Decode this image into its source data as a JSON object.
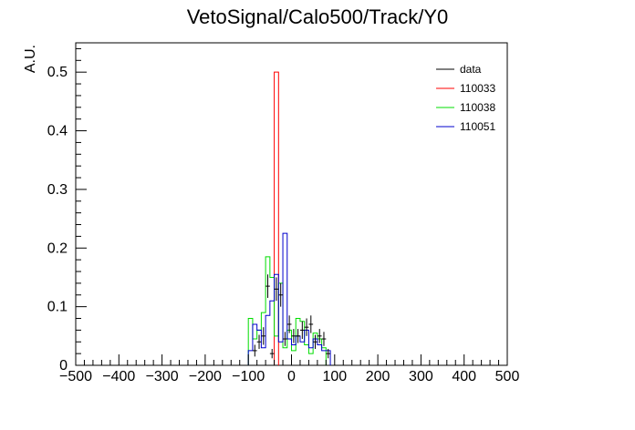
{
  "chart_data": {
    "type": "histogram",
    "title": "VetoSignal/Calo500/Track/Y0",
    "xlabel": "",
    "ylabel": "A.U.",
    "xlim": [
      -500,
      500
    ],
    "ylim": [
      0,
      0.55
    ],
    "x_ticks": [
      -500,
      -400,
      -300,
      -200,
      -100,
      0,
      100,
      200,
      300,
      400,
      500
    ],
    "y_ticks": [
      0,
      0.1,
      0.2,
      0.3,
      0.4,
      0.5
    ],
    "x_tick_labels": [
      "−500",
      "−400",
      "−300",
      "−200",
      "−100",
      "0",
      "100",
      "200",
      "300",
      "400",
      "500"
    ],
    "y_tick_labels": [
      "0",
      "0.1",
      "0.2",
      "0.3",
      "0.4",
      "0.5"
    ],
    "bin_width": 10,
    "legend_position": "top-right",
    "series": [
      {
        "name": "data",
        "color": "#000000",
        "style": "points",
        "x": [
          -85,
          -75,
          -65,
          -55,
          -45,
          -35,
          -25,
          -15,
          -5,
          5,
          15,
          25,
          35,
          45,
          55,
          65,
          75,
          85
        ],
        "values": [
          0.025,
          0.04,
          0.05,
          0.135,
          0.02,
          0.13,
          0.12,
          0.045,
          0.07,
          0.05,
          0.05,
          0.06,
          0.065,
          0.07,
          0.04,
          0.05,
          0.045,
          0.02
        ],
        "errors": [
          0.01,
          0.012,
          0.015,
          0.02,
          0.008,
          0.02,
          0.02,
          0.012,
          0.015,
          0.012,
          0.012,
          0.015,
          0.015,
          0.015,
          0.012,
          0.012,
          0.012,
          0.008
        ]
      },
      {
        "name": "110033",
        "color": "#ff0000",
        "style": "step",
        "bins": [
          [
            -40,
            -30,
            0.5
          ]
        ]
      },
      {
        "name": "110038",
        "color": "#00dd00",
        "style": "step",
        "bins": [
          [
            -100,
            -90,
            0.08
          ],
          [
            -90,
            -80,
            0.045
          ],
          [
            -80,
            -70,
            0.06
          ],
          [
            -70,
            -60,
            0.09
          ],
          [
            -60,
            -50,
            0.185
          ],
          [
            -50,
            -40,
            0.15
          ],
          [
            -40,
            -30,
            0.05
          ],
          [
            -30,
            -20,
            0.14
          ],
          [
            -20,
            -10,
            0.03
          ],
          [
            -10,
            0,
            0.06
          ],
          [
            0,
            10,
            0.025
          ],
          [
            10,
            20,
            0.08
          ],
          [
            20,
            30,
            0.075
          ],
          [
            30,
            40,
            0.035
          ],
          [
            40,
            50,
            0.02
          ],
          [
            50,
            60,
            0.055
          ],
          [
            60,
            70,
            0.045
          ],
          [
            70,
            80,
            0.03
          ]
        ]
      },
      {
        "name": "110051",
        "color": "#0000cc",
        "style": "step",
        "bins": [
          [
            -100,
            -90,
            0.025
          ],
          [
            -90,
            -80,
            0.07
          ],
          [
            -80,
            -70,
            0.06
          ],
          [
            -70,
            -60,
            0.03
          ],
          [
            -60,
            -50,
            0.085
          ],
          [
            -50,
            -40,
            0.11
          ],
          [
            -40,
            -30,
            0.155
          ],
          [
            -30,
            -20,
            0.04
          ],
          [
            -20,
            -10,
            0.225
          ],
          [
            -10,
            0,
            0.045
          ],
          [
            0,
            10,
            0.035
          ],
          [
            10,
            20,
            0.05
          ],
          [
            20,
            30,
            0.04
          ],
          [
            30,
            40,
            0.06
          ],
          [
            40,
            50,
            0.03
          ],
          [
            50,
            60,
            0.045
          ],
          [
            60,
            70,
            0.035
          ],
          [
            70,
            80,
            0.025
          ],
          [
            80,
            90,
            0.025
          ]
        ]
      }
    ]
  }
}
